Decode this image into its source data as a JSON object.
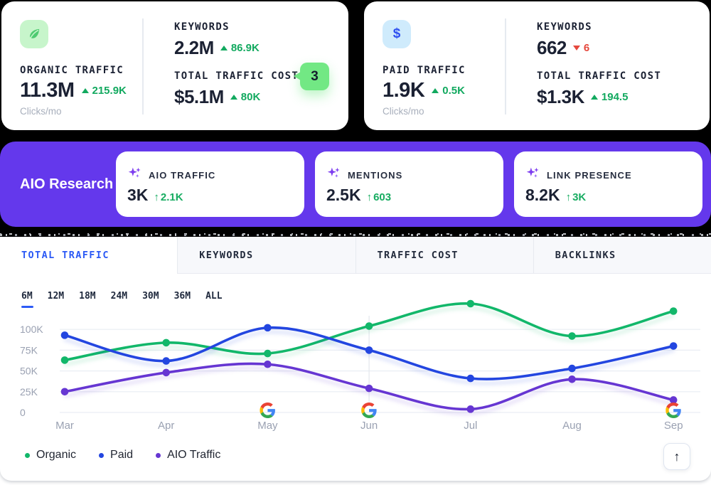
{
  "colors": {
    "background_top": "#000000",
    "banner_purple": "#6438EC",
    "accent_green": "#12B76A",
    "accent_blue": "#2346E0",
    "accent_purple": "#6636D2",
    "delta_green": "#12A95F",
    "delta_red": "#E5483D",
    "badge_green": "#72E884",
    "tab_active_blue": "#2B59F5"
  },
  "cards": {
    "organic": {
      "icon": "leaf-icon",
      "title": "ORGANIC TRAFFIC",
      "value": "11.3M",
      "delta": "215.9K",
      "delta_dir": "up",
      "unit": "Clicks/mo",
      "keywords": {
        "label": "KEYWORDS",
        "value": "2.2M",
        "delta": "86.9K",
        "delta_dir": "up"
      },
      "cost": {
        "label": "TOTAL TRAFFIC COST",
        "value": "$5.1M",
        "delta": "80K",
        "delta_dir": "up"
      },
      "badge_count": "3"
    },
    "paid": {
      "icon": "dollar-icon",
      "title": "PAID TRAFFIC",
      "value": "1.9K",
      "delta": "0.5K",
      "delta_dir": "up",
      "unit": "Clicks/mo",
      "keywords": {
        "label": "KEYWORDS",
        "value": "662",
        "delta": "6",
        "delta_dir": "down"
      },
      "cost": {
        "label": "TOTAL TRAFFIC COST",
        "value": "$1.3K",
        "delta": "194.5",
        "delta_dir": "up"
      }
    }
  },
  "aio_banner": {
    "title": "AIO Research",
    "cards": [
      {
        "icon": "sparkles-icon",
        "label": "AIO TRAFFIC",
        "value": "3K",
        "delta": "2.1K",
        "delta_dir": "up"
      },
      {
        "icon": "sparkles-icon",
        "label": "MENTIONS",
        "value": "2.5K",
        "delta": "603",
        "delta_dir": "up"
      },
      {
        "icon": "sparkles-icon",
        "label": "LINK PRESENCE",
        "value": "8.2K",
        "delta": "3K",
        "delta_dir": "up"
      }
    ]
  },
  "tabs": [
    {
      "label": "TOTAL TRAFFIC",
      "active": true
    },
    {
      "label": "KEYWORDS",
      "active": false
    },
    {
      "label": "TRAFFIC COST",
      "active": false
    },
    {
      "label": "BACKLINKS",
      "active": false
    }
  ],
  "ranges": [
    {
      "label": "6M",
      "active": true
    },
    {
      "label": "12M",
      "active": false
    },
    {
      "label": "18M",
      "active": false
    },
    {
      "label": "24M",
      "active": false
    },
    {
      "label": "30M",
      "active": false
    },
    {
      "label": "36M",
      "active": false
    },
    {
      "label": "ALL",
      "active": false
    }
  ],
  "chart_data": {
    "type": "line",
    "x": [
      "Mar",
      "Apr",
      "May",
      "Jun",
      "Jul",
      "Aug",
      "Sep"
    ],
    "series": [
      {
        "name": "Organic",
        "color": "#12B76A",
        "values": [
          63000,
          84000,
          71000,
          104000,
          131000,
          92000,
          122000
        ]
      },
      {
        "name": "Paid",
        "color": "#2346E0",
        "values": [
          93000,
          62000,
          102000,
          75000,
          41000,
          53000,
          80000
        ]
      },
      {
        "name": "AIO Traffic",
        "color": "#6636D2",
        "values": [
          25000,
          48000,
          58000,
          29000,
          4000,
          40000,
          15000
        ]
      }
    ],
    "yticks": [
      "0",
      "25K",
      "50K",
      "75K",
      "100K"
    ],
    "ytick_values": [
      0,
      25000,
      50000,
      75000,
      100000
    ],
    "ylim": [
      0,
      131000
    ],
    "grid": true,
    "google_markers": [
      "May",
      "Jun",
      "Sep"
    ],
    "guideline_month": "Jun",
    "legend_position": "bottom-left"
  }
}
